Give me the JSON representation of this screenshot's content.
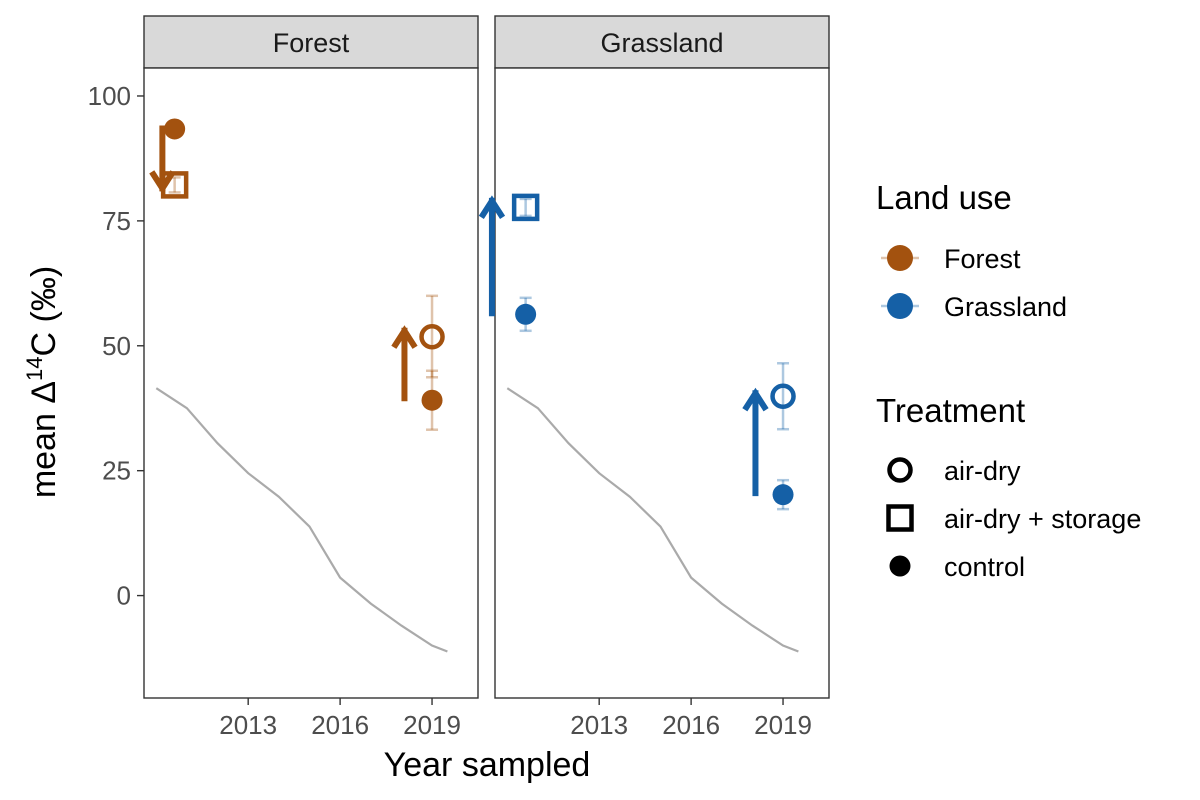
{
  "chart_data": {
    "type": "scatter",
    "facets": [
      {
        "name": "Forest",
        "color": "#A3520F",
        "points": [
          {
            "treatment": "control",
            "x": 2010.6,
            "y": 93.4
          },
          {
            "treatment": "air-dry + storage",
            "x": 2010.6,
            "y": 82.2,
            "ymin": 80.7,
            "ymax": 83.7
          },
          {
            "treatment": "control",
            "x": 2019.0,
            "y": 39.1,
            "ymin": 33.2,
            "ymax": 45.0
          },
          {
            "treatment": "air-dry",
            "x": 2019.0,
            "y": 51.8,
            "ymin": 43.7,
            "ymax": 60.0
          }
        ],
        "arrows": [
          {
            "x": 2010.2,
            "y_start": 93.5,
            "y_end": 81.5
          },
          {
            "x": 2018.1,
            "y_start": 39.5,
            "y_end": 53.0
          }
        ]
      },
      {
        "name": "Grassland",
        "color": "#1560A6",
        "points": [
          {
            "treatment": "control",
            "x": 2010.6,
            "y": 56.3,
            "ymin": 53.0,
            "ymax": 59.6
          },
          {
            "treatment": "air-dry + storage",
            "x": 2010.6,
            "y": 77.7,
            "ymin": 76.0,
            "ymax": 79.4
          },
          {
            "treatment": "control",
            "x": 2019.0,
            "y": 20.2,
            "ymin": 17.3,
            "ymax": 23.1
          },
          {
            "treatment": "air-dry",
            "x": 2019.0,
            "y": 39.9,
            "ymin": 33.3,
            "ymax": 46.5
          }
        ],
        "arrows": [
          {
            "x": 2009.5,
            "y_start": 56.5,
            "y_end": 79.0
          },
          {
            "x": 2018.1,
            "y_start": 20.5,
            "y_end": 40.5
          }
        ]
      }
    ],
    "reference_line": {
      "color": "#AAAAAA",
      "x": [
        2010.0,
        2011.0,
        2012.0,
        2013.0,
        2014.0,
        2015.0,
        2016.0,
        2017.0,
        2018.0,
        2019.0,
        2019.5
      ],
      "y": [
        41.5,
        37.5,
        30.5,
        24.5,
        19.8,
        13.8,
        3.6,
        -1.6,
        -6.0,
        -10.0,
        -11.2
      ]
    },
    "xlim": [
      2009.6,
      2020.5
    ],
    "ylim": [
      -20.5,
      105.6
    ],
    "x_ticks": [
      2013,
      2016,
      2019
    ],
    "y_ticks": [
      0,
      25,
      50,
      75,
      100
    ],
    "xlabel": "Year sampled",
    "ylabel_main": "mean Δ",
    "ylabel_sup": "14",
    "ylabel_end": "C (‰)",
    "grid": false,
    "legend_position": "right",
    "legend": {
      "land_use": {
        "title": "Land use",
        "entries": [
          {
            "label": "Forest",
            "color": "#A3520F"
          },
          {
            "label": "Grassland",
            "color": "#1560A6"
          }
        ]
      },
      "treatment": {
        "title": "Treatment",
        "entries": [
          {
            "label": "air-dry",
            "shape": "open-circle"
          },
          {
            "label": "air-dry + storage",
            "shape": "open-square"
          },
          {
            "label": "control",
            "shape": "filled-circle"
          }
        ]
      }
    }
  }
}
